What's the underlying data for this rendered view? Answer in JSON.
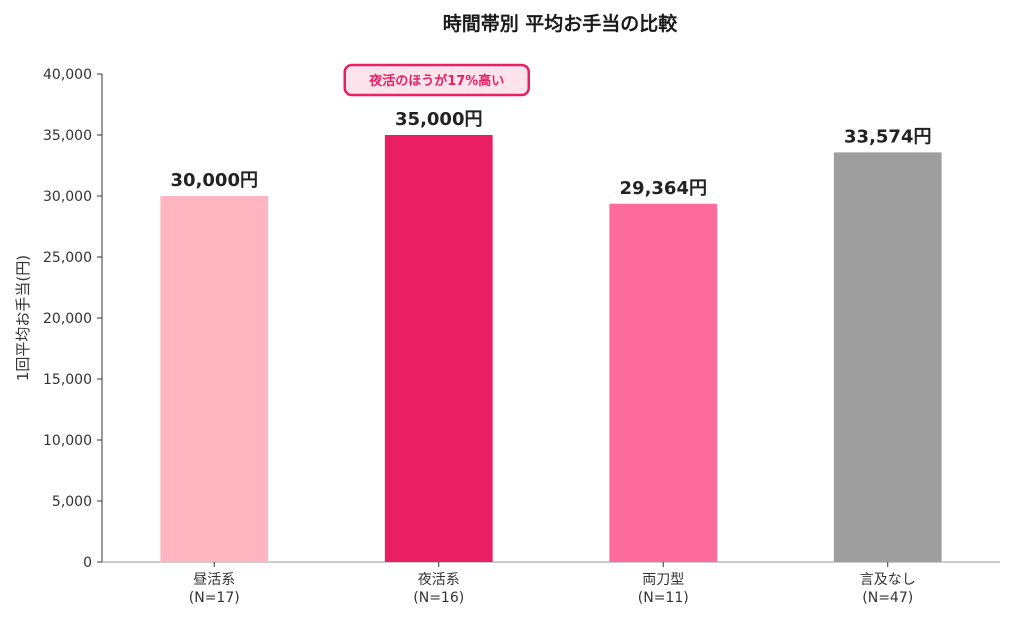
{
  "chart_data": {
    "type": "bar",
    "title": "時間帯別 平均お手当の比較",
    "ylabel": "1回平均お手当(円)",
    "xlabel": "",
    "ylim": [
      0,
      40000
    ],
    "yticks": [
      0,
      5000,
      10000,
      15000,
      20000,
      25000,
      30000,
      35000,
      40000
    ],
    "ytick_labels": [
      "0",
      "5,000",
      "10,000",
      "15,000",
      "20,000",
      "25,000",
      "30,000",
      "35,000",
      "40,000"
    ],
    "grid": false,
    "categories": [
      "昼活系",
      "夜活系",
      "両刀型",
      "言及なし"
    ],
    "category_counts": [
      "(N=17)",
      "(N=16)",
      "(N=11)",
      "(N=47)"
    ],
    "values": [
      30000,
      35000,
      29364,
      33574
    ],
    "value_labels": [
      "30,000円",
      "35,000円",
      "29,364円",
      "33,574円"
    ],
    "colors": [
      "#ffb6c1",
      "#e91e63",
      "#ff6b9d",
      "#9e9e9e"
    ],
    "annotation": {
      "text": "夜活のほうが17%高い",
      "category_index": 1,
      "text_color": "#e91e63",
      "border_color": "#e91e63",
      "fill_color": "#fde4ec"
    }
  }
}
